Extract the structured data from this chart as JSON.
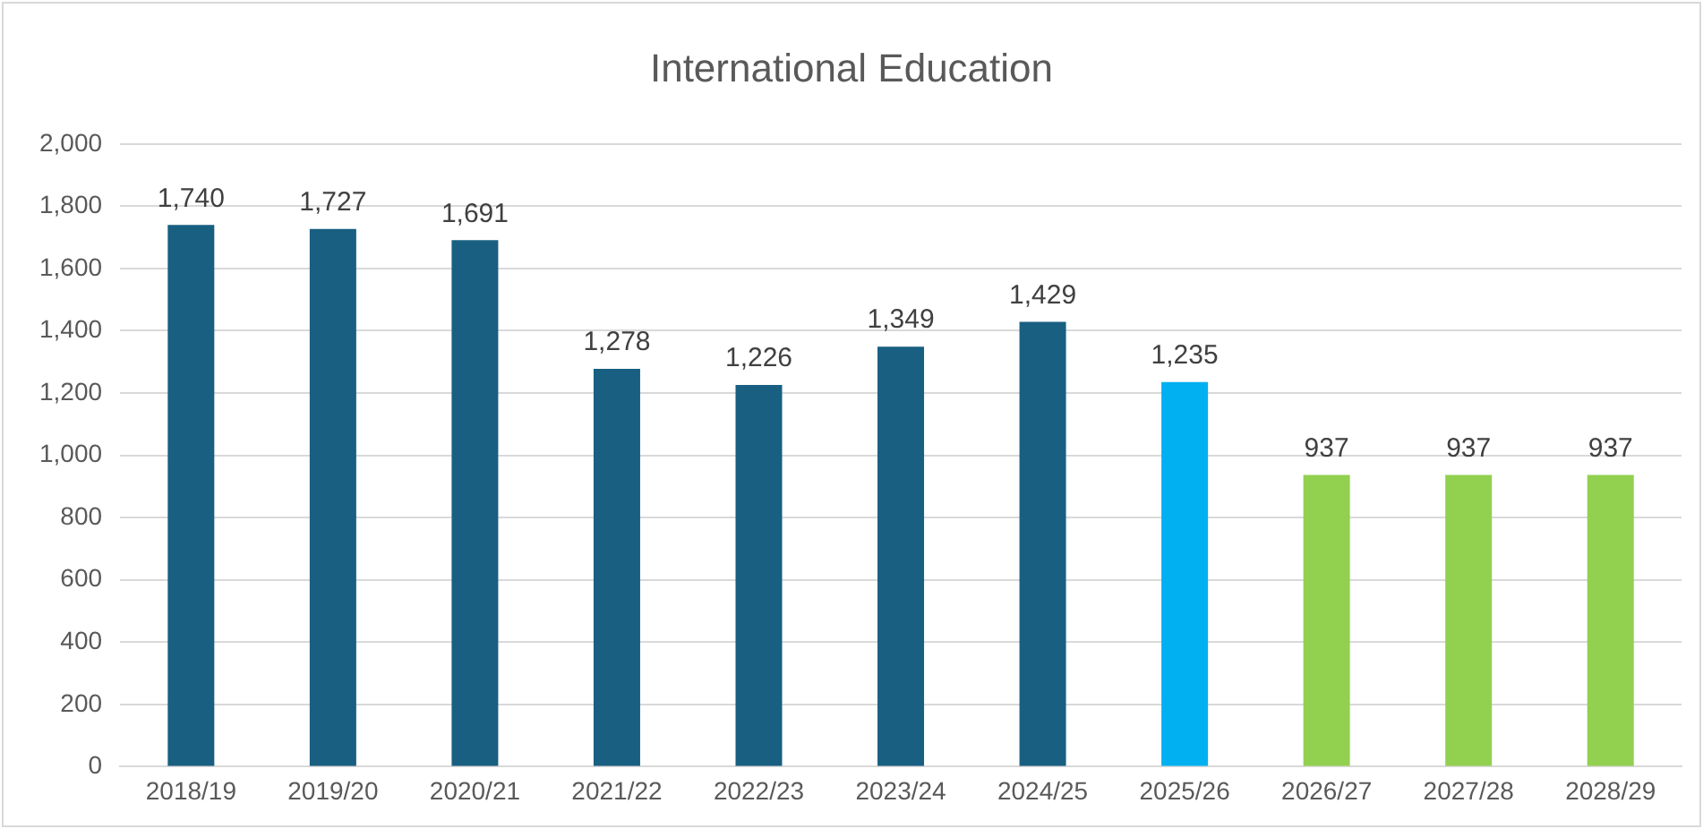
{
  "chart_data": {
    "type": "bar",
    "title": "International Education",
    "categories": [
      "2018/19",
      "2019/20",
      "2020/21",
      "2021/22",
      "2022/23",
      "2023/24",
      "2024/25",
      "2025/26",
      "2026/27",
      "2027/28",
      "2028/29"
    ],
    "values": [
      1740,
      1727,
      1691,
      1278,
      1226,
      1349,
      1429,
      1235,
      937,
      937,
      937
    ],
    "colors": [
      "#185f82",
      "#185f82",
      "#185f82",
      "#185f82",
      "#185f82",
      "#185f82",
      "#185f82",
      "#00b0f0",
      "#92d050",
      "#92d050",
      "#92d050"
    ],
    "value_labels": [
      "1,740",
      "1,727",
      "1,691",
      "1,278",
      "1,226",
      "1,349",
      "1,429",
      "1,235",
      "937",
      "937",
      "937"
    ],
    "ylim": [
      0,
      2000
    ],
    "yticks": [
      {
        "value": 0,
        "label": "0"
      },
      {
        "value": 200,
        "label": "200"
      },
      {
        "value": 400,
        "label": "400"
      },
      {
        "value": 600,
        "label": "600"
      },
      {
        "value": 800,
        "label": "800"
      },
      {
        "value": 1000,
        "label": "1,000"
      },
      {
        "value": 1200,
        "label": "1,200"
      },
      {
        "value": 1400,
        "label": "1,400"
      },
      {
        "value": 1600,
        "label": "1,600"
      },
      {
        "value": 1800,
        "label": "1,800"
      },
      {
        "value": 2000,
        "label": "2,000"
      }
    ],
    "grid": "y",
    "legend": false
  }
}
